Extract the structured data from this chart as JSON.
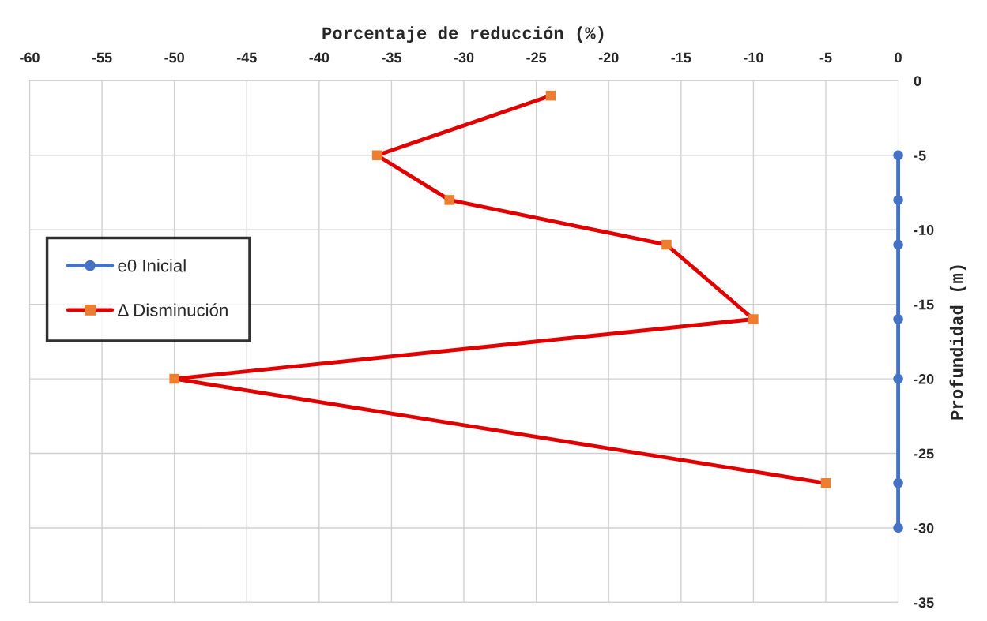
{
  "chart_data": {
    "type": "line",
    "xlabel": "Porcentaje de reducción (%)",
    "ylabel": "Profundidad (m)",
    "xlim": [
      -60,
      0
    ],
    "xticks": [
      -60,
      -55,
      -50,
      -45,
      -40,
      -35,
      -30,
      -25,
      -20,
      -15,
      -10,
      -5,
      0
    ],
    "ylim": [
      -35,
      0
    ],
    "yticks": [
      -35,
      -30,
      -25,
      -20,
      -15,
      -10,
      -5,
      0
    ],
    "grid": true,
    "legend": "left",
    "series": [
      {
        "name": "e0 Inicial",
        "color": "#4472c4",
        "marker": "circle",
        "x": [
          0,
          0,
          0,
          0,
          0,
          0,
          0
        ],
        "values": [
          -5,
          -8,
          -11,
          -16,
          -20,
          -27,
          -30
        ]
      },
      {
        "name": "Δ Disminución",
        "color": "#e00000",
        "colors": [
          "#ed7d31",
          "#ed7d31",
          "#ed7d31",
          "#ed7d31",
          "#ed7d31",
          "#ed7d31",
          "#ed7d31"
        ],
        "marker": "square",
        "x": [
          -24,
          -36,
          -31,
          -16,
          -10,
          -50,
          -5
        ],
        "values": [
          -1,
          -5,
          -8,
          -11,
          -16,
          -20,
          -27
        ]
      }
    ]
  }
}
